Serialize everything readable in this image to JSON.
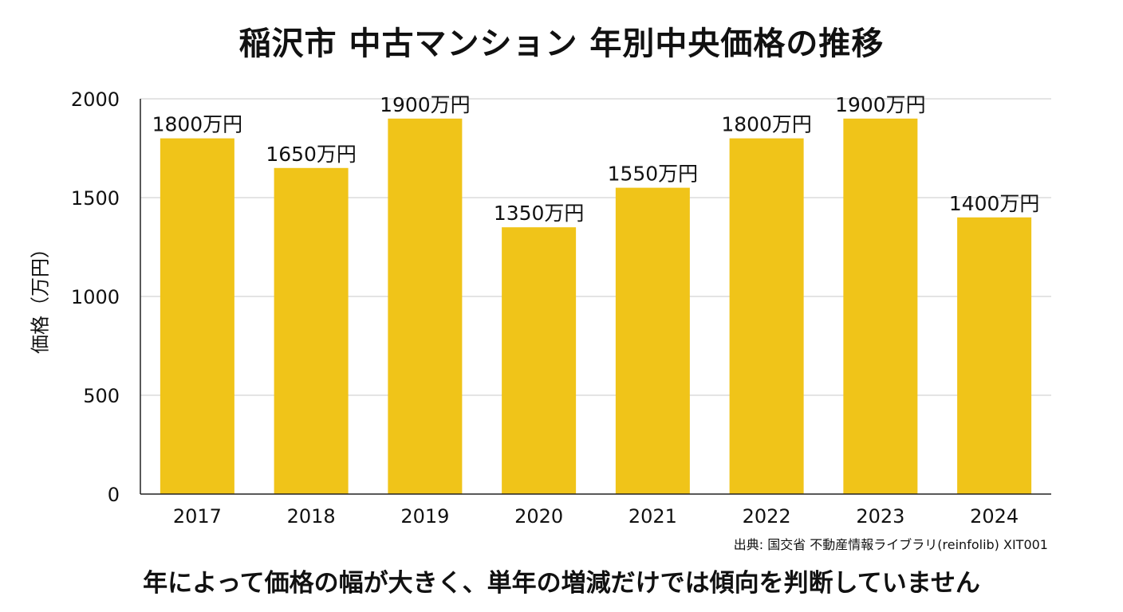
{
  "chart_data": {
    "type": "bar",
    "title": "稲沢市 中古マンション 年別中央価格の推移",
    "ylabel": "価格（万円）",
    "xlabel": "",
    "categories": [
      "2017",
      "2018",
      "2019",
      "2020",
      "2021",
      "2022",
      "2023",
      "2024"
    ],
    "values": [
      1800,
      1650,
      1900,
      1350,
      1550,
      1800,
      1900,
      1400
    ],
    "value_labels": [
      "1800万円",
      "1650万円",
      "1900万円",
      "1350万円",
      "1550万円",
      "1800万円",
      "1900万円",
      "1400万円"
    ],
    "ylim": [
      0,
      2000
    ],
    "yticks": [
      "0",
      "500",
      "1000",
      "1500",
      "2000"
    ],
    "grid": true,
    "bar_color": "#F0C419",
    "source": "出典: 国交省 不動産情報ライブラリ(reinfolib) XIT001",
    "footer": "年によって価格の幅が大きく、単年の増減だけでは傾向を判断していません"
  }
}
